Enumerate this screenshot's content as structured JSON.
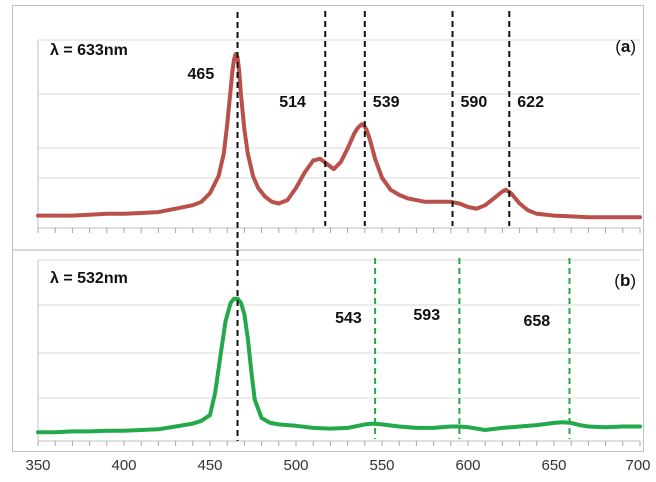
{
  "chart_data": {
    "type": "line",
    "x_axis": {
      "min": 350,
      "max": 700,
      "ticks": [
        350,
        400,
        450,
        500,
        550,
        600,
        650,
        700
      ],
      "tick_labels": [
        "350",
        "400",
        "450",
        "500",
        "550",
        "600",
        "650",
        "700"
      ]
    },
    "panels": [
      {
        "id": "a",
        "panel_label_open": "(",
        "panel_label_letter": "a",
        "panel_label_close": ")",
        "annotation": "λ = 633nm",
        "color": "#b9504a",
        "ylim": [
          0,
          1
        ],
        "x": [
          350,
          360,
          370,
          380,
          390,
          400,
          410,
          420,
          430,
          440,
          445,
          450,
          455,
          458,
          460,
          462,
          463,
          464,
          465,
          466,
          467,
          468,
          470,
          472,
          475,
          478,
          482,
          486,
          490,
          495,
          500,
          505,
          510,
          514,
          518,
          522,
          526,
          530,
          534,
          536,
          538,
          539,
          541,
          543,
          546,
          550,
          555,
          560,
          565,
          570,
          575,
          580,
          585,
          590,
          595,
          600,
          605,
          610,
          615,
          620,
          622,
          625,
          630,
          635,
          640,
          650,
          660,
          670,
          680,
          690,
          700
        ],
        "values": [
          0.02,
          0.02,
          0.02,
          0.025,
          0.03,
          0.03,
          0.035,
          0.04,
          0.06,
          0.08,
          0.1,
          0.15,
          0.25,
          0.38,
          0.55,
          0.75,
          0.86,
          0.93,
          0.96,
          0.94,
          0.86,
          0.72,
          0.52,
          0.38,
          0.25,
          0.18,
          0.13,
          0.1,
          0.09,
          0.11,
          0.18,
          0.27,
          0.34,
          0.35,
          0.32,
          0.29,
          0.33,
          0.41,
          0.5,
          0.53,
          0.55,
          0.55,
          0.52,
          0.46,
          0.35,
          0.24,
          0.17,
          0.14,
          0.12,
          0.11,
          0.1,
          0.1,
          0.1,
          0.1,
          0.09,
          0.07,
          0.06,
          0.08,
          0.12,
          0.16,
          0.17,
          0.15,
          0.09,
          0.05,
          0.03,
          0.02,
          0.015,
          0.01,
          0.01,
          0.01,
          0.01
        ],
        "markers": [
          {
            "x": 466,
            "label": "465",
            "style": "black"
          },
          {
            "x": 517,
            "label": "514",
            "style": "black"
          },
          {
            "x": 540,
            "label": "539",
            "style": "black"
          },
          {
            "x": 591,
            "label": "590",
            "style": "black"
          },
          {
            "x": 624,
            "label": "622",
            "style": "black"
          }
        ]
      },
      {
        "id": "b",
        "panel_label_open": "(",
        "panel_label_letter": "b",
        "panel_label_close": ")",
        "annotation": "λ = 532nm",
        "color": "#23a84a",
        "ylim": [
          0,
          1
        ],
        "x": [
          350,
          360,
          370,
          380,
          390,
          400,
          410,
          420,
          430,
          440,
          445,
          450,
          453,
          456,
          459,
          462,
          464,
          466,
          468,
          470,
          472,
          474,
          476,
          480,
          485,
          490,
          495,
          500,
          510,
          520,
          530,
          540,
          545,
          550,
          560,
          570,
          580,
          590,
          595,
          600,
          610,
          620,
          630,
          640,
          650,
          655,
          660,
          665,
          670,
          680,
          690,
          700
        ],
        "values": [
          0.02,
          0.02,
          0.025,
          0.025,
          0.03,
          0.03,
          0.035,
          0.04,
          0.06,
          0.08,
          0.1,
          0.14,
          0.3,
          0.55,
          0.8,
          0.93,
          0.96,
          0.96,
          0.93,
          0.85,
          0.68,
          0.45,
          0.25,
          0.12,
          0.085,
          0.075,
          0.07,
          0.065,
          0.05,
          0.045,
          0.05,
          0.075,
          0.08,
          0.075,
          0.06,
          0.05,
          0.05,
          0.06,
          0.06,
          0.055,
          0.035,
          0.05,
          0.06,
          0.07,
          0.085,
          0.09,
          0.085,
          0.07,
          0.06,
          0.055,
          0.06,
          0.06
        ],
        "markers": [
          {
            "x": 466,
            "label": "",
            "style": "black"
          },
          {
            "x": 546,
            "label": "543",
            "style": "green"
          },
          {
            "x": 595,
            "label": "593",
            "style": "green"
          },
          {
            "x": 659,
            "label": "658",
            "style": "green"
          }
        ]
      }
    ]
  }
}
